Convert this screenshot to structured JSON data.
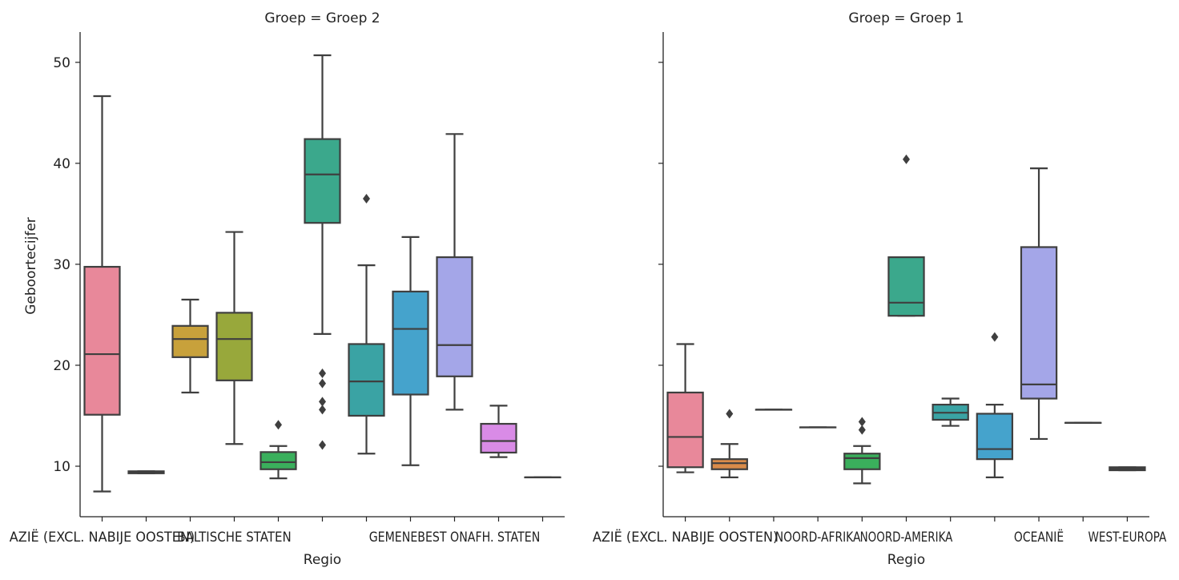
{
  "chart_data": {
    "type": "box",
    "ylabel": "Geboortecijfer",
    "xlabel": "Regio",
    "ylim": [
      5,
      53
    ],
    "yticks": [
      10,
      20,
      30,
      40,
      50
    ],
    "grid": false,
    "colors": [
      "#e8889a",
      "#d98b4a",
      "#c8a13b",
      "#98a83b",
      "#3aaf5c",
      "#3ba88c",
      "#3aa3a4",
      "#45a3cc",
      "#a4a6e8",
      "#d98be6",
      "#7a7a7a"
    ],
    "facets": [
      {
        "title": "Groep = Groep 2",
        "tick_labels": [
          "AZIË (EXCL. NABIJE OOSTEN)",
          "",
          "",
          "BALTISCHE STATEN",
          "",
          "",
          "",
          "",
          "GEMENEBEST ONAFH. STATEN",
          "",
          ""
        ],
        "boxes": [
          {
            "wlow": 7.5,
            "q1": 15.1,
            "med": 21.1,
            "q3": 29.75,
            "whigh": 46.65,
            "out": []
          },
          {
            "wlow": 9.3,
            "q1": 9.3,
            "med": 9.4,
            "q3": 9.5,
            "whigh": 9.5,
            "out": []
          },
          {
            "wlow": 17.3,
            "q1": 20.8,
            "med": 22.6,
            "q3": 23.9,
            "whigh": 26.5,
            "out": []
          },
          {
            "wlow": 12.2,
            "q1": 18.5,
            "med": 22.6,
            "q3": 25.2,
            "whigh": 33.2,
            "out": []
          },
          {
            "wlow": 8.8,
            "q1": 9.7,
            "med": 10.4,
            "q3": 11.4,
            "whigh": 12.0,
            "out": [
              14.1
            ]
          },
          {
            "wlow": 23.1,
            "q1": 34.1,
            "med": 38.9,
            "q3": 42.4,
            "whigh": 50.7,
            "out": [
              19.2,
              18.2,
              16.4,
              15.6,
              12.1
            ]
          },
          {
            "wlow": 11.25,
            "q1": 15.0,
            "med": 18.4,
            "q3": 22.1,
            "whigh": 29.9,
            "out": [
              36.5
            ]
          },
          {
            "wlow": 10.1,
            "q1": 17.1,
            "med": 23.6,
            "q3": 27.3,
            "whigh": 32.7,
            "out": []
          },
          {
            "wlow": 15.6,
            "q1": 18.9,
            "med": 22.0,
            "q3": 30.7,
            "whigh": 42.9,
            "out": []
          },
          {
            "wlow": 10.9,
            "q1": 11.35,
            "med": 12.5,
            "q3": 14.2,
            "whigh": 16.0,
            "out": []
          },
          {
            "wlow": 8.9,
            "q1": 8.9,
            "med": 8.9,
            "q3": 8.9,
            "whigh": 8.9,
            "out": []
          }
        ]
      },
      {
        "title": "Groep = Groep 1",
        "tick_labels": [
          "AZIË (EXCL. NABIJE OOSTEN)",
          "",
          "",
          "NOORD-AFRIKA",
          "",
          "NOORD-AMERIKA",
          "",
          "",
          "OCEANIË",
          "",
          "WEST-EUROPA"
        ],
        "boxes": [
          {
            "wlow": 9.4,
            "q1": 9.9,
            "med": 12.9,
            "q3": 17.3,
            "whigh": 22.1,
            "out": []
          },
          {
            "wlow": 8.9,
            "q1": 9.7,
            "med": 10.3,
            "q3": 10.7,
            "whigh": 12.2,
            "out": [
              15.2
            ]
          },
          {
            "wlow": 15.6,
            "q1": 15.6,
            "med": 15.6,
            "q3": 15.6,
            "whigh": 15.6,
            "out": []
          },
          {
            "wlow": 13.85,
            "q1": 13.85,
            "med": 13.85,
            "q3": 13.85,
            "whigh": 13.85,
            "out": []
          },
          {
            "wlow": 8.3,
            "q1": 9.7,
            "med": 10.8,
            "q3": 11.25,
            "whigh": 12.0,
            "out": [
              14.4,
              13.6
            ]
          },
          {
            "wlow": 24.9,
            "q1": 24.9,
            "med": 26.2,
            "q3": 30.7,
            "whigh": 30.7,
            "out": [
              40.4
            ]
          },
          {
            "wlow": 14.0,
            "q1": 14.6,
            "med": 15.3,
            "q3": 16.1,
            "whigh": 16.7,
            "out": []
          },
          {
            "wlow": 8.9,
            "q1": 10.7,
            "med": 11.7,
            "q3": 15.2,
            "whigh": 16.1,
            "out": [
              22.8
            ]
          },
          {
            "wlow": 12.7,
            "q1": 16.7,
            "med": 18.1,
            "q3": 31.7,
            "whigh": 39.5,
            "out": []
          },
          {
            "wlow": 14.3,
            "q1": 14.3,
            "med": 14.3,
            "q3": 14.3,
            "whigh": 14.3,
            "out": []
          },
          {
            "wlow": 9.6,
            "q1": 9.6,
            "med": 9.75,
            "q3": 9.9,
            "whigh": 9.9,
            "out": []
          }
        ]
      }
    ]
  }
}
